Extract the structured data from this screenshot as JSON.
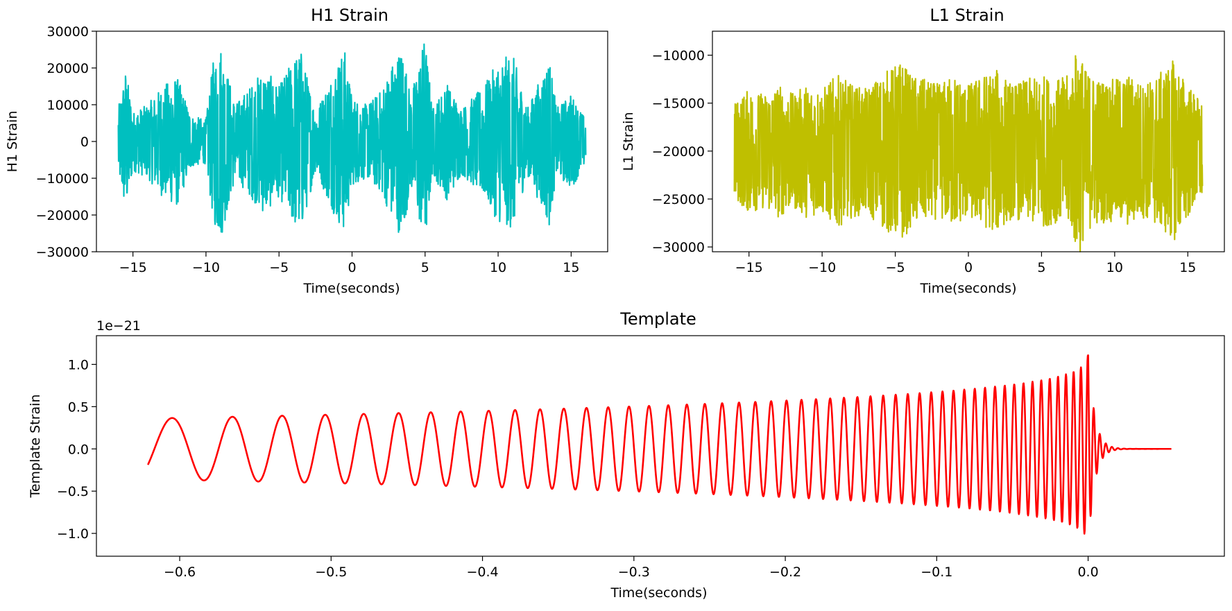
{
  "chart_data": [
    {
      "type": "line",
      "title": "H1 Strain",
      "xlabel": "Time(seconds)",
      "ylabel": "H1 Strain",
      "xlim": [
        -17.5,
        17.5
      ],
      "ylim": [
        -30000,
        30000
      ],
      "xticks": [
        -15,
        -10,
        -5,
        0,
        5,
        10,
        15
      ],
      "xtick_labels": [
        "−15",
        "−10",
        "−5",
        "0",
        "5",
        "10",
        "15"
      ],
      "yticks": [
        -30000,
        -20000,
        -10000,
        0,
        10000,
        20000,
        30000
      ],
      "ytick_labels": [
        "−30000",
        "−20000",
        "−10000",
        "0",
        "10000",
        "20000",
        "30000"
      ],
      "color": "#00bfbf",
      "series": [
        {
          "x_range": [
            -16,
            16
          ],
          "baseline": 0,
          "envelope": [
            [
              -16,
              9000
            ],
            [
              -15.5,
              20000
            ],
            [
              -15,
              8000
            ],
            [
              -14,
              10000
            ],
            [
              -13,
              15000
            ],
            [
              -12,
              18000
            ],
            [
              -11,
              7000
            ],
            [
              -10,
              6000
            ],
            [
              -9.5,
              22000
            ],
            [
              -9,
              27000
            ],
            [
              -8,
              10000
            ],
            [
              -7,
              15000
            ],
            [
              -6,
              20000
            ],
            [
              -5,
              15000
            ],
            [
              -4,
              23000
            ],
            [
              -3.5,
              25000
            ],
            [
              -2.5,
              8000
            ],
            [
              -1,
              22000
            ],
            [
              -0.5,
              25000
            ],
            [
              0,
              12000
            ],
            [
              1,
              10000
            ],
            [
              2,
              14000
            ],
            [
              3,
              24000
            ],
            [
              3.5,
              26000
            ],
            [
              4,
              12000
            ],
            [
              5,
              29000
            ],
            [
              5.5,
              9000
            ],
            [
              6.5,
              16000
            ],
            [
              7.5,
              9000
            ],
            [
              9,
              15000
            ],
            [
              10,
              22000
            ],
            [
              11,
              24000
            ],
            [
              12,
              9000
            ],
            [
              13.5,
              23000
            ],
            [
              14,
              9000
            ],
            [
              15,
              13000
            ],
            [
              16,
              6000
            ]
          ]
        }
      ]
    },
    {
      "type": "line",
      "title": "L1 Strain",
      "xlabel": "Time(seconds)",
      "ylabel": "L1 Strain",
      "xlim": [
        -17.5,
        17.5
      ],
      "ylim": [
        -30500,
        -7500
      ],
      "xticks": [
        -15,
        -10,
        -5,
        0,
        5,
        10,
        15
      ],
      "xtick_labels": [
        "−15",
        "−10",
        "−5",
        "0",
        "5",
        "10",
        "15"
      ],
      "yticks": [
        -30000,
        -25000,
        -20000,
        -15000,
        -10000
      ],
      "ytick_labels": [
        "−30000",
        "−25000",
        "−20000",
        "−15000",
        "−10000"
      ],
      "color": "#bfbf00",
      "series": [
        {
          "x_range": [
            -16,
            16
          ],
          "baseline": -20000,
          "envelope": [
            [
              -16,
              5000
            ],
            [
              -15,
              6500
            ],
            [
              -14,
              6000
            ],
            [
              -13,
              7000
            ],
            [
              -12,
              6000
            ],
            [
              -11,
              7000
            ],
            [
              -10,
              6500
            ],
            [
              -9,
              8000
            ],
            [
              -8,
              7000
            ],
            [
              -7,
              6500
            ],
            [
              -6,
              8000
            ],
            [
              -5,
              9000
            ],
            [
              -4.5,
              9500
            ],
            [
              -4,
              8000
            ],
            [
              -3,
              7500
            ],
            [
              -2,
              7000
            ],
            [
              -1,
              8000
            ],
            [
              0,
              7000
            ],
            [
              1,
              8000
            ],
            [
              2,
              8500
            ],
            [
              3,
              7000
            ],
            [
              4,
              7500
            ],
            [
              5,
              8000
            ],
            [
              6,
              7500
            ],
            [
              7,
              8000
            ],
            [
              7.5,
              11500
            ],
            [
              8,
              8500
            ],
            [
              9,
              7500
            ],
            [
              10,
              7500
            ],
            [
              11,
              8000
            ],
            [
              12,
              7000
            ],
            [
              13,
              8000
            ],
            [
              14,
              9500
            ],
            [
              15,
              7000
            ],
            [
              16,
              5000
            ]
          ]
        }
      ]
    },
    {
      "type": "line",
      "title": "Template",
      "xlabel": "Time(seconds)",
      "ylabel": "Template Strain",
      "offset_text": "1e−21",
      "xlim": [
        -0.655,
        0.09
      ],
      "ylim": [
        -1.27,
        1.34
      ],
      "xticks": [
        -0.6,
        -0.5,
        -0.4,
        -0.3,
        -0.2,
        -0.1,
        0.0
      ],
      "xtick_labels": [
        "−0.6",
        "−0.5",
        "−0.4",
        "−0.3",
        "−0.2",
        "−0.1",
        "0.0"
      ],
      "yticks": [
        -1.0,
        -0.5,
        0.0,
        0.5,
        1.0
      ],
      "ytick_labels": [
        "−1.0",
        "−0.5",
        "0.0",
        "0.5",
        "1.0"
      ],
      "color": "#ff0000",
      "series": [
        {
          "x_range": [
            -0.621,
            0.055
          ],
          "amplitude_start": 0.36,
          "amplitude_peak": 1.22,
          "peak_time": 0.0,
          "frequency_start": 20,
          "frequency_peak": 250,
          "ringdown_tau": 0.004
        }
      ]
    }
  ]
}
